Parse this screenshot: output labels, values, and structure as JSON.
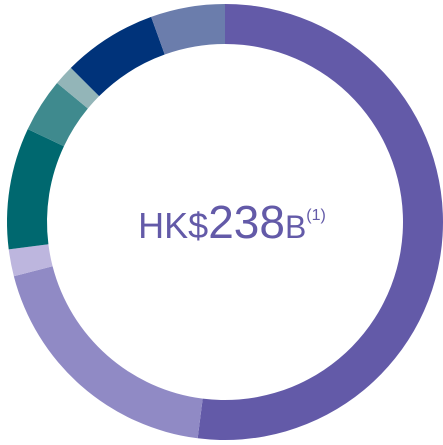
{
  "chart_data": {
    "type": "donut",
    "values": [
      52,
      19,
      2,
      9,
      4,
      1.5,
      7,
      5.5
    ],
    "colors": [
      "#635aa8",
      "#908ac5",
      "#bdb6de",
      "#00686f",
      "#3f8a8e",
      "#93b5b8",
      "#00337a",
      "#6b7dac"
    ],
    "center_text": [
      "HK$",
      "238",
      "B",
      "(1)"
    ]
  }
}
